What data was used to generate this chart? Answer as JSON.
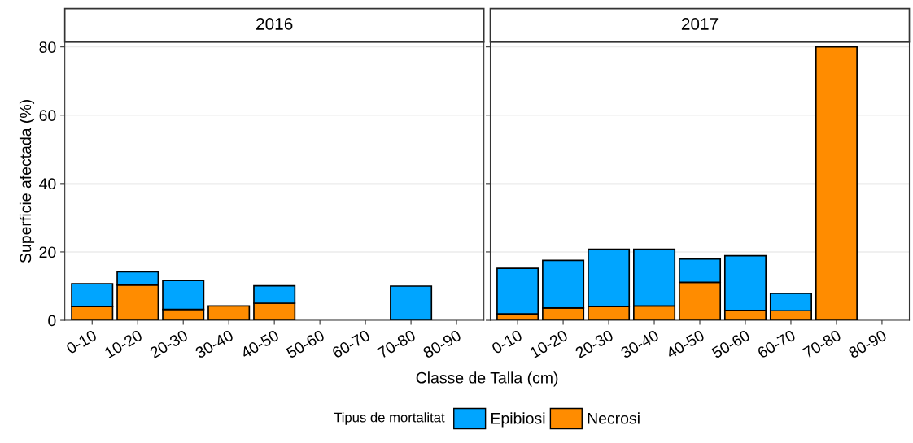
{
  "chart_data": [
    {
      "type": "bar",
      "title": "2016",
      "xlabel": "Classe de Talla (cm)",
      "ylabel": "Superficie afectada (%)",
      "legend_title": "Tipus de mortalitat",
      "legend": "bottom",
      "stacked": true,
      "grid": "y",
      "categories": [
        "0-10",
        "10-20",
        "20-30",
        "30-40",
        "40-50",
        "50-60",
        "60-70",
        "70-80",
        "80-90"
      ],
      "series": [
        {
          "name": "Necrosi",
          "color": "#ff8c00",
          "values": [
            4.0,
            10.3,
            3.2,
            4.2,
            5.0,
            null,
            null,
            null,
            null
          ]
        },
        {
          "name": "Epibiosi",
          "color": "#00a5ff",
          "values": [
            6.7,
            3.9,
            8.4,
            null,
            5.1,
            null,
            null,
            10.0,
            null
          ]
        }
      ],
      "ylim": [
        0,
        81.4
      ],
      "yticks": [
        0,
        20,
        40,
        60,
        80
      ]
    },
    {
      "type": "bar",
      "title": "2017",
      "stacked": true,
      "grid": "y",
      "tick_labels": "x",
      "categories": [
        "0-10",
        "10-20",
        "20-30",
        "30-40",
        "40-50",
        "50-60",
        "60-70",
        "70-80",
        "80-90"
      ],
      "series": [
        {
          "color": "#ff8c00",
          "values": [
            1.9,
            3.6,
            4.0,
            4.2,
            11.1,
            2.9,
            2.8,
            80.0,
            null
          ]
        },
        {
          "color": "#00a5ff",
          "values": [
            13.3,
            13.9,
            16.8,
            16.6,
            6.8,
            16.0,
            5.1,
            null,
            null
          ]
        }
      ],
      "ylim": [
        0,
        81.4
      ],
      "yticks": [
        0,
        20,
        40,
        60,
        80
      ]
    }
  ]
}
